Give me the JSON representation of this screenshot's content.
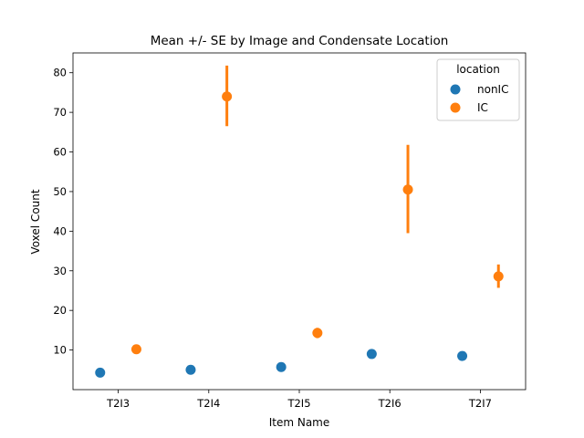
{
  "chart_data": {
    "type": "scatter",
    "title": "Mean +/- SE by Image and Condensate Location",
    "xlabel": "Item Name",
    "ylabel": "Voxel Count",
    "categories": [
      "T2I3",
      "T2I4",
      "T2I5",
      "T2I6",
      "T2I7"
    ],
    "ylim": [
      0,
      85
    ],
    "yticks": [
      10,
      20,
      30,
      40,
      50,
      60,
      70,
      80
    ],
    "grid": false,
    "legend": {
      "title": "location",
      "placement": "top-right"
    },
    "series": [
      {
        "name": "nonIC",
        "color": "#1f77b4",
        "values": [
          4.3,
          5.0,
          5.7,
          9.0,
          8.5
        ],
        "se_low": [
          4.2,
          4.9,
          5.5,
          8.8,
          8.3
        ],
        "se_high": [
          4.4,
          5.1,
          5.9,
          9.2,
          8.7
        ]
      },
      {
        "name": "IC",
        "color": "#ff7f0e",
        "values": [
          10.2,
          74.0,
          14.3,
          50.5,
          28.6
        ],
        "se_low": [
          9.9,
          66.5,
          13.0,
          39.5,
          25.7
        ],
        "se_high": [
          10.5,
          81.8,
          15.6,
          61.8,
          31.6
        ]
      }
    ]
  }
}
